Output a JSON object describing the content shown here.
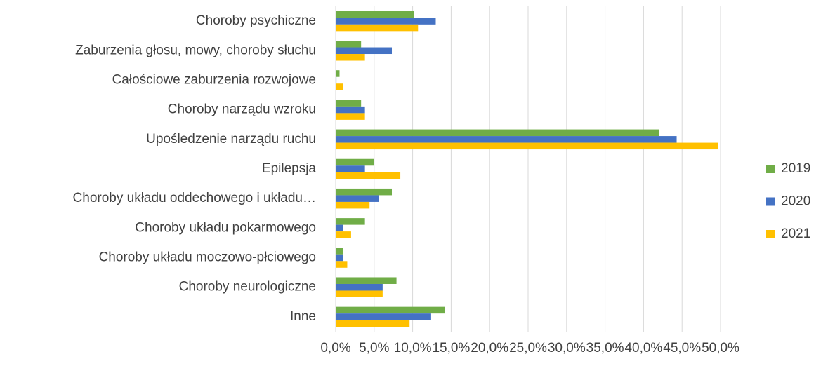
{
  "chart_data": {
    "type": "bar",
    "orientation": "horizontal",
    "categories": [
      "Choroby psychiczne",
      "Zaburzenia głosu, mowy, choroby słuchu",
      "Całościowe zaburzenia rozwojowe",
      "Choroby narządu wzroku",
      "Upośledzenie narządu ruchu",
      "Epilepsja",
      "Choroby układu oddechowego i układu…",
      "Choroby układu pokarmowego",
      "Choroby układu moczowo-płciowego",
      "Choroby neurologiczne",
      "Inne"
    ],
    "series": [
      {
        "name": "2019",
        "color": "#70ad47",
        "values": [
          10.2,
          3.3,
          0.5,
          3.3,
          42.0,
          5.0,
          7.3,
          3.8,
          1.0,
          7.9,
          14.2
        ]
      },
      {
        "name": "2020",
        "color": "#4472c4",
        "values": [
          13.0,
          7.3,
          0.1,
          3.8,
          44.3,
          3.8,
          5.6,
          1.0,
          1.0,
          6.1,
          12.4
        ]
      },
      {
        "name": "2021",
        "color": "#ffc000",
        "values": [
          10.7,
          3.8,
          1.0,
          3.8,
          49.7,
          8.4,
          4.4,
          2.0,
          1.5,
          6.1,
          9.6
        ]
      }
    ],
    "xlim": [
      0,
      50
    ],
    "xticks": [
      {
        "value": 0,
        "label": "0,0%"
      },
      {
        "value": 5,
        "label": "5,0%"
      },
      {
        "value": 10,
        "label": "10,0%"
      },
      {
        "value": 15,
        "label": "15,0%"
      },
      {
        "value": 20,
        "label": "20,0%"
      },
      {
        "value": 25,
        "label": "25,0%"
      },
      {
        "value": 30,
        "label": "30,0%"
      },
      {
        "value": 35,
        "label": "35,0%"
      },
      {
        "value": 40,
        "label": "40,0%"
      },
      {
        "value": 45,
        "label": "45,0%"
      },
      {
        "value": 50,
        "label": "50,0%"
      }
    ],
    "grid": true,
    "legend": "right"
  }
}
